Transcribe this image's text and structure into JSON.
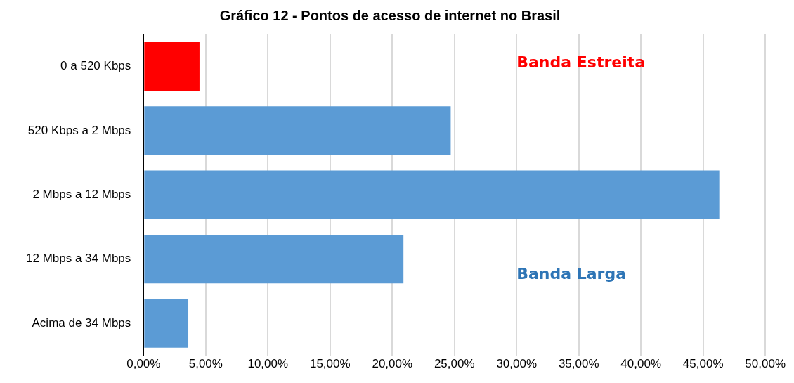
{
  "chart_data": {
    "type": "bar",
    "orientation": "horizontal",
    "title": "Gráfico 12 - Pontos de acesso de internet no Brasil",
    "categories": [
      "0 a 520 Kbps",
      "520 Kbps a 2 Mbps",
      "2 Mbps a 12 Mbps",
      "12 Mbps a 34 Mbps",
      "Acima de 34 Mbps"
    ],
    "values": [
      4.5,
      24.7,
      46.3,
      20.9,
      3.6
    ],
    "colors": [
      "#ff0000",
      "#5b9bd5",
      "#5b9bd5",
      "#5b9bd5",
      "#5b9bd5"
    ],
    "xlim": [
      0,
      50
    ],
    "xticks": [
      {
        "value": 0,
        "label": "0,00%"
      },
      {
        "value": 5,
        "label": "5,00%"
      },
      {
        "value": 10,
        "label": "10,00%"
      },
      {
        "value": 15,
        "label": "15,00%"
      },
      {
        "value": 20,
        "label": "20,00%"
      },
      {
        "value": 25,
        "label": "25,00%"
      },
      {
        "value": 30,
        "label": "30,00%"
      },
      {
        "value": 35,
        "label": "35,00%"
      },
      {
        "value": 40,
        "label": "40,00%"
      },
      {
        "value": 45,
        "label": "45,00%"
      },
      {
        "value": 50,
        "label": "50,00%"
      }
    ],
    "grid": "x",
    "legend": false,
    "annotations": [
      "Banda Estreita",
      "Banda Larga"
    ]
  }
}
